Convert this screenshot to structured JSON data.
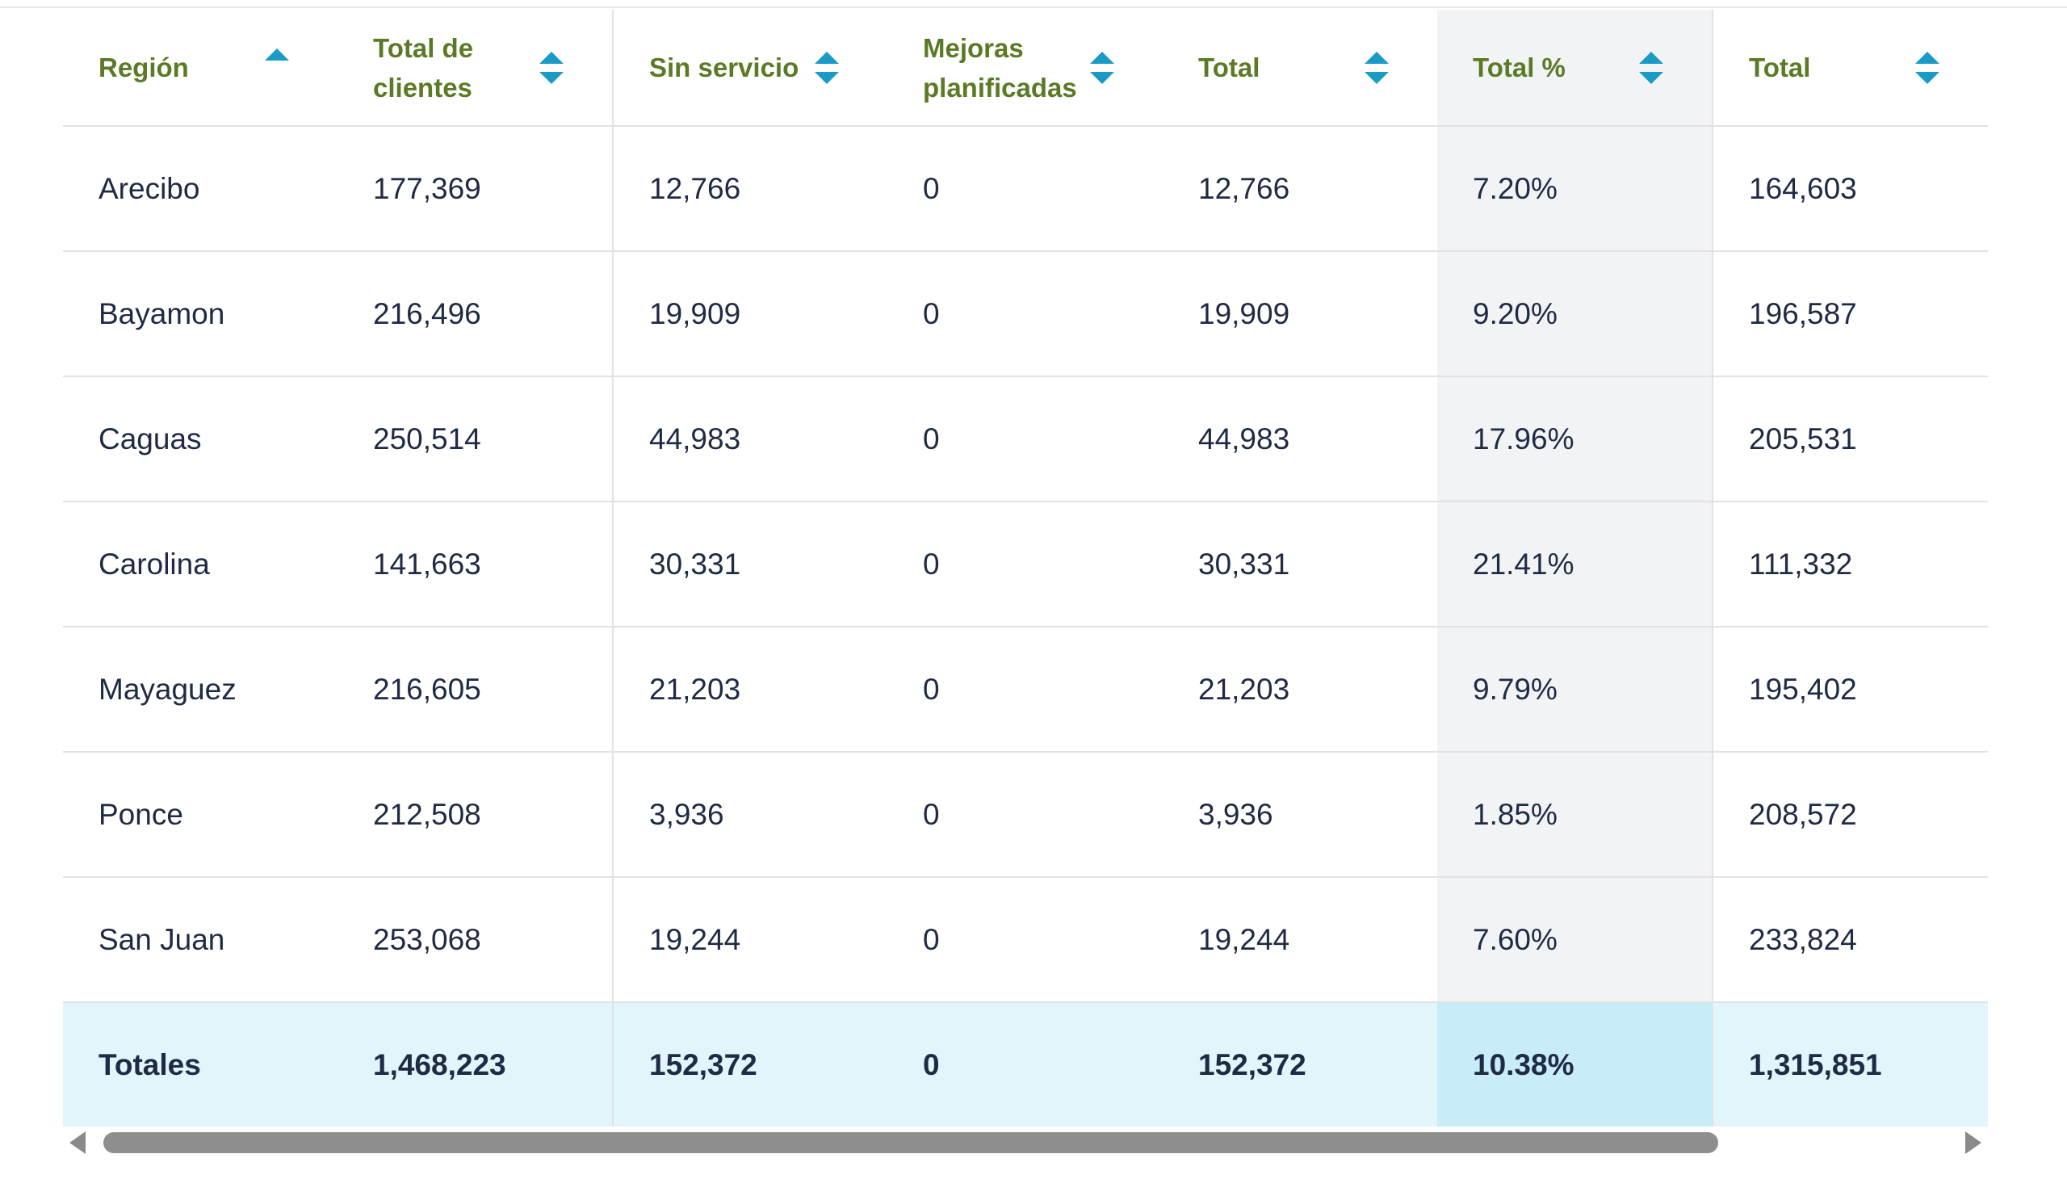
{
  "table": {
    "columns": [
      {
        "label": "Región",
        "sort": "asc"
      },
      {
        "label": "Total de clientes",
        "sort": "both"
      },
      {
        "label": "Sin servicio",
        "sort": "both"
      },
      {
        "label": "Mejoras planificadas",
        "sort": "both"
      },
      {
        "label": "Total",
        "sort": "both"
      },
      {
        "label": "Total %",
        "sort": "both"
      },
      {
        "label": "Total",
        "sort": "both"
      }
    ],
    "rows": [
      [
        "Arecibo",
        "177,369",
        "12,766",
        "0",
        "12,766",
        "7.20%",
        "164,603"
      ],
      [
        "Bayamon",
        "216,496",
        "19,909",
        "0",
        "19,909",
        "9.20%",
        "196,587"
      ],
      [
        "Caguas",
        "250,514",
        "44,983",
        "0",
        "44,983",
        "17.96%",
        "205,531"
      ],
      [
        "Carolina",
        "141,663",
        "30,331",
        "0",
        "30,331",
        "21.41%",
        "111,332"
      ],
      [
        "Mayaguez",
        "216,605",
        "21,203",
        "0",
        "21,203",
        "9.79%",
        "195,402"
      ],
      [
        "Ponce",
        "212,508",
        "3,936",
        "0",
        "3,936",
        "1.85%",
        "208,572"
      ],
      [
        "San Juan",
        "253,068",
        "19,244",
        "0",
        "19,244",
        "7.60%",
        "233,824"
      ]
    ],
    "totals": [
      "Totales",
      "1,468,223",
      "152,372",
      "0",
      "152,372",
      "10.38%",
      "1,315,851"
    ]
  },
  "colors": {
    "header_text": "#5b7a26",
    "sort_icon": "#1a9bc6",
    "highlight_column": "#f2f3f5",
    "totals_row": "#e2f5fb"
  },
  "icons": {
    "sort_both": "sort-arrows-icon",
    "sort_asc": "sort-asc-icon",
    "scroll_left": "scroll-left-icon",
    "scroll_right": "scroll-right-icon"
  }
}
